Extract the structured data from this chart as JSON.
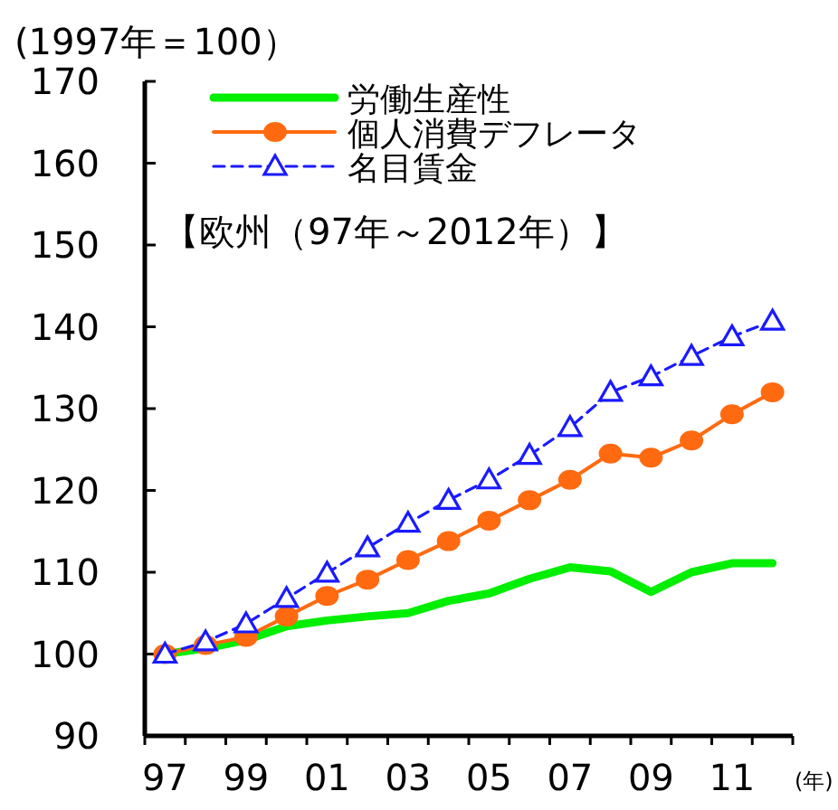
{
  "chart_data": {
    "type": "line",
    "title": "【欧州（97年～2012年）】",
    "ylabel": "(1997年＝100）",
    "xlabel": "(年)",
    "categories": [
      "97",
      null,
      "99",
      null,
      "01",
      null,
      "03",
      null,
      "05",
      null,
      "07",
      null,
      "09",
      null,
      "11",
      null
    ],
    "ylim": [
      90,
      170
    ],
    "yticks": [
      90,
      100,
      110,
      120,
      130,
      140,
      150,
      160,
      170
    ],
    "grid": false,
    "legend": "top left",
    "series": [
      {
        "name": "労働生産性",
        "color": "#00ee00",
        "marker": "none",
        "line_style": "solid",
        "values": [
          100,
          100.7,
          101.7,
          103.4,
          104.1,
          104.6,
          105.0,
          106.5,
          107.4,
          109.2,
          110.6,
          110.1,
          107.6,
          110.0,
          111.1,
          111.1
        ]
      },
      {
        "name": "個人消費デフレータ",
        "color": "#ff6a10",
        "marker": "circle",
        "line_style": "solid",
        "values": [
          100,
          101.1,
          102.1,
          104.6,
          107.1,
          109.1,
          111.5,
          113.8,
          116.3,
          118.8,
          121.3,
          124.5,
          124.0,
          126.1,
          129.3,
          132.0
        ]
      },
      {
        "name": "名目賃金",
        "color": "#1a1aff",
        "marker": "triangle",
        "line_style": "dashed",
        "values": [
          100,
          101.5,
          103.7,
          106.8,
          109.9,
          113.0,
          116.0,
          118.8,
          121.3,
          124.3,
          127.7,
          132.0,
          133.9,
          136.4,
          138.8,
          140.7
        ]
      }
    ]
  }
}
